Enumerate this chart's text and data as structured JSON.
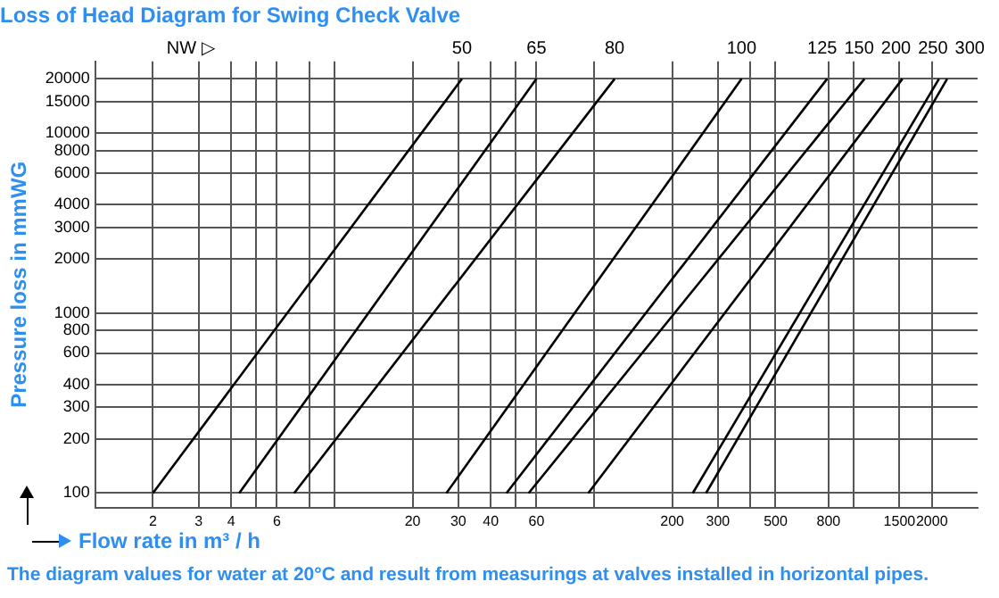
{
  "chart_data": {
    "type": "line",
    "title": "Loss of Head Diagram for Swing Check Valve",
    "xlabel": "Flow rate in m³ / h",
    "ylabel": "Pressure loss in mmWG",
    "log": "xy",
    "grid": true,
    "legend": false,
    "marker": "none",
    "line_style": "solid",
    "xlim": [
      1.2,
      3000
    ],
    "ylim": [
      83,
      25000
    ],
    "xticks": [
      2,
      3,
      4,
      {
        "value": 5,
        "label": null
      },
      6,
      {
        "value": 8,
        "label": null
      },
      {
        "value": 10,
        "label": null
      },
      20,
      30,
      40,
      {
        "value": 50,
        "label": null
      },
      60,
      {
        "value": 100,
        "label": null
      },
      200,
      300,
      {
        "value": 400,
        "label": null
      },
      500,
      800,
      {
        "value": 1000,
        "label": null
      },
      1500,
      2000
    ],
    "yticks": [
      100,
      200,
      300,
      400,
      600,
      800,
      1000,
      2000,
      3000,
      4000,
      6000,
      8000,
      10000,
      15000,
      20000
    ],
    "series": [
      {
        "name": "50",
        "color": "#000000",
        "x": [
          2,
          31
        ],
        "values": [
          100,
          20000
        ]
      },
      {
        "name": "65",
        "color": "#000000",
        "x": [
          4.3,
          60
        ],
        "values": [
          100,
          20000
        ]
      },
      {
        "name": "80",
        "color": "#000000",
        "x": [
          7,
          120
        ],
        "values": [
          100,
          20000
        ]
      },
      {
        "name": "100",
        "color": "#000000",
        "x": [
          27,
          370
        ],
        "values": [
          100,
          20000
        ]
      },
      {
        "name": "125",
        "color": "#000000",
        "x": [
          46,
          790
        ],
        "values": [
          100,
          20000
        ]
      },
      {
        "name": "150",
        "color": "#000000",
        "x": [
          56,
          1100
        ],
        "values": [
          100,
          20000
        ]
      },
      {
        "name": "200",
        "color": "#000000",
        "x": [
          95,
          1540
        ],
        "values": [
          100,
          20000
        ]
      },
      {
        "name": "250",
        "color": "#000000",
        "x": [
          240,
          2130
        ],
        "values": [
          100,
          20000
        ]
      },
      {
        "name": "300",
        "color": "#000000",
        "x": [
          270,
          2290
        ],
        "values": [
          100,
          20000
        ]
      }
    ],
    "annotations": [
      "NW ▷",
      "The diagram values for water at 20°C and result from measurings at valves installed in horizontal pipes."
    ]
  }
}
